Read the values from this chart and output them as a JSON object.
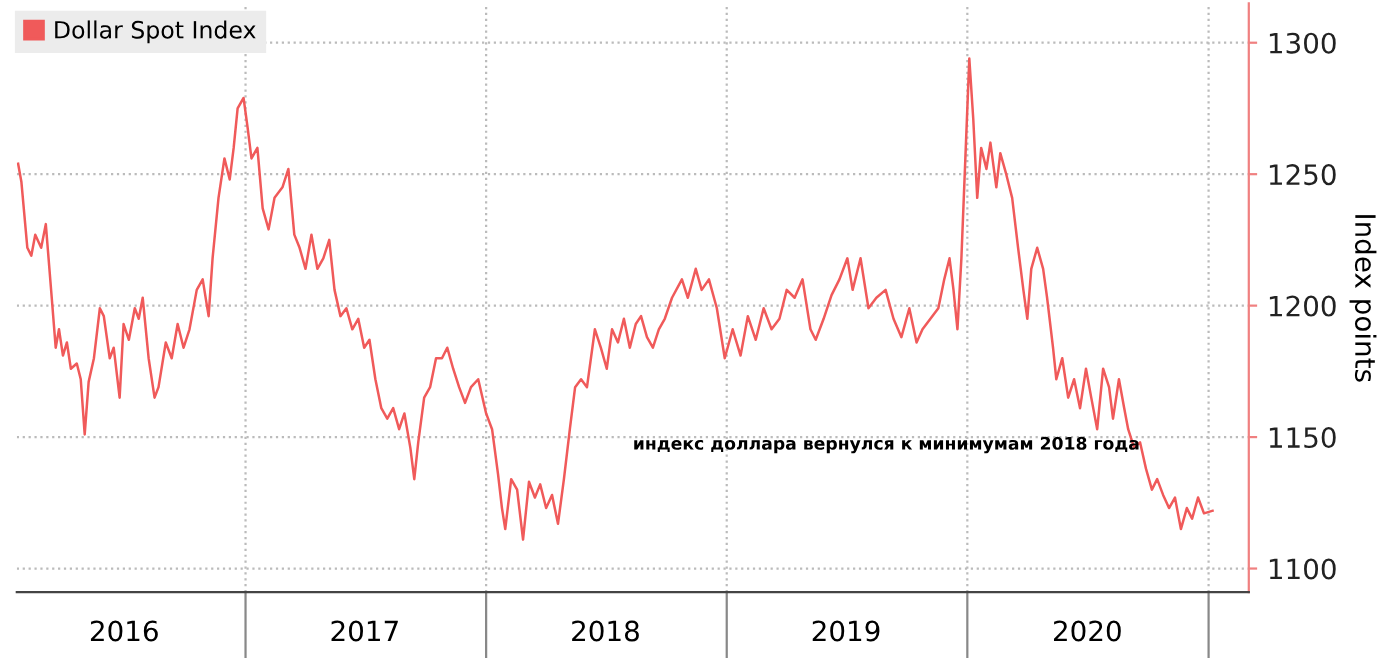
{
  "chart_data": {
    "type": "line",
    "ylabel": "Index points",
    "annotations": [
      "индекс доллара вернулся к минимумам 2018 года"
    ],
    "xlim": [
      "2016-01-20",
      "2021-03-03"
    ],
    "xticks": [
      {
        "value": "2016-07-01",
        "label": "2016"
      },
      {
        "value": "2017-01-01",
        "label": null
      },
      {
        "value": "2017-07-01",
        "label": "2017"
      },
      {
        "value": "2018-01-01",
        "label": null
      },
      {
        "value": "2018-07-01",
        "label": "2018"
      },
      {
        "value": "2019-01-01",
        "label": null
      },
      {
        "value": "2019-07-01",
        "label": "2019"
      },
      {
        "value": "2020-01-01",
        "label": null
      },
      {
        "value": "2020-07-01",
        "label": "2020"
      },
      {
        "value": "2021-01-01",
        "label": null
      }
    ],
    "ylim": [
      1091,
      1315
    ],
    "yticks": [
      1100,
      1150,
      1200,
      1250,
      1300
    ],
    "grid": true,
    "legend": "top left",
    "series": [
      {
        "name": "Dollar Spot Index",
        "color": "#f05a5a",
        "x": [
          "2016-01-22",
          "2016-01-27",
          "2016-02-05",
          "2016-02-11",
          "2016-02-17",
          "2016-02-26",
          "2016-03-04",
          "2016-03-13",
          "2016-03-19",
          "2016-03-24",
          "2016-03-30",
          "2016-04-05",
          "2016-04-11",
          "2016-04-20",
          "2016-04-26",
          "2016-05-02",
          "2016-05-08",
          "2016-05-16",
          "2016-05-25",
          "2016-05-31",
          "2016-06-09",
          "2016-06-15",
          "2016-06-24",
          "2016-06-30",
          "2016-07-08",
          "2016-07-17",
          "2016-07-23",
          "2016-07-29",
          "2016-08-07",
          "2016-08-16",
          "2016-08-22",
          "2016-09-02",
          "2016-09-11",
          "2016-09-20",
          "2016-09-29",
          "2016-10-08",
          "2016-10-19",
          "2016-10-28",
          "2016-11-06",
          "2016-11-12",
          "2016-11-21",
          "2016-11-30",
          "2016-12-08",
          "2016-12-14",
          "2016-12-20",
          "2016-12-29",
          "2017-01-04",
          "2017-01-10",
          "2017-01-19",
          "2017-01-27",
          "2017-02-05",
          "2017-02-14",
          "2017-02-26",
          "2017-03-07",
          "2017-03-16",
          "2017-03-24",
          "2017-04-02",
          "2017-04-11",
          "2017-04-20",
          "2017-04-29",
          "2017-05-08",
          "2017-05-16",
          "2017-05-25",
          "2017-06-03",
          "2017-06-12",
          "2017-06-21",
          "2017-06-30",
          "2017-07-08",
          "2017-07-17",
          "2017-07-26",
          "2017-08-04",
          "2017-08-13",
          "2017-08-22",
          "2017-08-30",
          "2017-09-08",
          "2017-09-14",
          "2017-09-20",
          "2017-09-29",
          "2017-10-08",
          "2017-10-17",
          "2017-10-26",
          "2017-11-03",
          "2017-11-12",
          "2017-11-21",
          "2017-11-30",
          "2017-12-09",
          "2017-12-20",
          "2018-01-01",
          "2018-01-10",
          "2018-01-19",
          "2018-01-25",
          "2018-01-30",
          "2018-02-08",
          "2018-02-17",
          "2018-02-26",
          "2018-03-07",
          "2018-03-16",
          "2018-03-24",
          "2018-04-02",
          "2018-04-11",
          "2018-04-20",
          "2018-04-29",
          "2018-05-08",
          "2018-05-16",
          "2018-05-25",
          "2018-06-03",
          "2018-06-15",
          "2018-06-24",
          "2018-07-03",
          "2018-07-11",
          "2018-07-20",
          "2018-07-29",
          "2018-08-07",
          "2018-08-16",
          "2018-08-24",
          "2018-09-02",
          "2018-09-11",
          "2018-09-20",
          "2018-09-29",
          "2018-10-10",
          "2018-10-25",
          "2018-11-03",
          "2018-11-15",
          "2018-11-24",
          "2018-12-05",
          "2018-12-17",
          "2018-12-29",
          "2019-01-10",
          "2019-01-22",
          "2019-02-02",
          "2019-02-14",
          "2019-02-26",
          "2019-03-10",
          "2019-03-22",
          "2019-04-02",
          "2019-04-14",
          "2019-04-26",
          "2019-05-08",
          "2019-05-16",
          "2019-05-28",
          "2019-06-09",
          "2019-06-21",
          "2019-07-03",
          "2019-07-11",
          "2019-07-23",
          "2019-08-04",
          "2019-08-16",
          "2019-08-30",
          "2019-09-11",
          "2019-09-23",
          "2019-10-05",
          "2019-10-16",
          "2019-10-25",
          "2019-11-06",
          "2019-11-18",
          "2019-11-27",
          "2019-12-05",
          "2019-12-11",
          "2019-12-17",
          "2019-12-23",
          "2019-12-29",
          "2020-01-04",
          "2020-01-10",
          "2020-01-16",
          "2020-01-22",
          "2020-01-30",
          "2020-02-05",
          "2020-02-14",
          "2020-02-20",
          "2020-02-29",
          "2020-03-09",
          "2020-03-18",
          "2020-03-26",
          "2020-04-01",
          "2020-04-07",
          "2020-04-16",
          "2020-04-25",
          "2020-05-01",
          "2020-05-10",
          "2020-05-15",
          "2020-05-24",
          "2020-06-02",
          "2020-06-11",
          "2020-06-20",
          "2020-06-29",
          "2020-07-07",
          "2020-07-16",
          "2020-07-25",
          "2020-08-03",
          "2020-08-09",
          "2020-08-18",
          "2020-08-26",
          "2020-09-01",
          "2020-09-10",
          "2020-09-19",
          "2020-09-28",
          "2020-10-07",
          "2020-10-15",
          "2020-10-24",
          "2020-11-02",
          "2020-11-11",
          "2020-11-20",
          "2020-11-29",
          "2020-12-07",
          "2020-12-16",
          "2020-12-25",
          "2021-01-07"
        ],
        "values": [
          1254,
          1247,
          1222,
          1219,
          1227,
          1222,
          1231,
          1203,
          1184,
          1191,
          1181,
          1186,
          1176,
          1178,
          1172,
          1151,
          1171,
          1180,
          1199,
          1196,
          1180,
          1184,
          1165,
          1193,
          1187,
          1199,
          1195,
          1203,
          1180,
          1165,
          1169,
          1186,
          1180,
          1193,
          1184,
          1191,
          1206,
          1210,
          1196,
          1218,
          1241,
          1256,
          1248,
          1260,
          1275,
          1279,
          1268,
          1256,
          1260,
          1237,
          1229,
          1241,
          1245,
          1252,
          1227,
          1222,
          1214,
          1227,
          1214,
          1218,
          1225,
          1206,
          1196,
          1199,
          1191,
          1195,
          1184,
          1187,
          1172,
          1161,
          1157,
          1161,
          1153,
          1159,
          1146,
          1134,
          1148,
          1165,
          1169,
          1180,
          1180,
          1184,
          1176,
          1169,
          1163,
          1169,
          1172,
          1159,
          1153,
          1136,
          1123,
          1115,
          1134,
          1130,
          1111,
          1133,
          1127,
          1132,
          1123,
          1128,
          1117,
          1134,
          1153,
          1169,
          1172,
          1169,
          1191,
          1184,
          1176,
          1191,
          1186,
          1195,
          1184,
          1193,
          1196,
          1188,
          1184,
          1191,
          1195,
          1203,
          1210,
          1203,
          1214,
          1206,
          1210,
          1199,
          1180,
          1191,
          1181,
          1196,
          1187,
          1199,
          1191,
          1195,
          1206,
          1203,
          1210,
          1191,
          1187,
          1195,
          1204,
          1210,
          1218,
          1206,
          1218,
          1199,
          1203,
          1206,
          1195,
          1188,
          1199,
          1186,
          1191,
          1195,
          1199,
          1210,
          1218,
          1206,
          1191,
          1218,
          1256,
          1294,
          1271,
          1241,
          1260,
          1252,
          1262,
          1245,
          1258,
          1250,
          1241,
          1222,
          1206,
          1195,
          1214,
          1222,
          1214,
          1203,
          1184,
          1172,
          1180,
          1165,
          1172,
          1161,
          1176,
          1165,
          1153,
          1176,
          1169,
          1157,
          1172,
          1161,
          1153,
          1146,
          1148,
          1138,
          1130,
          1134,
          1128,
          1123,
          1127,
          1115,
          1123,
          1119,
          1127,
          1121,
          1122
        ]
      }
    ]
  }
}
